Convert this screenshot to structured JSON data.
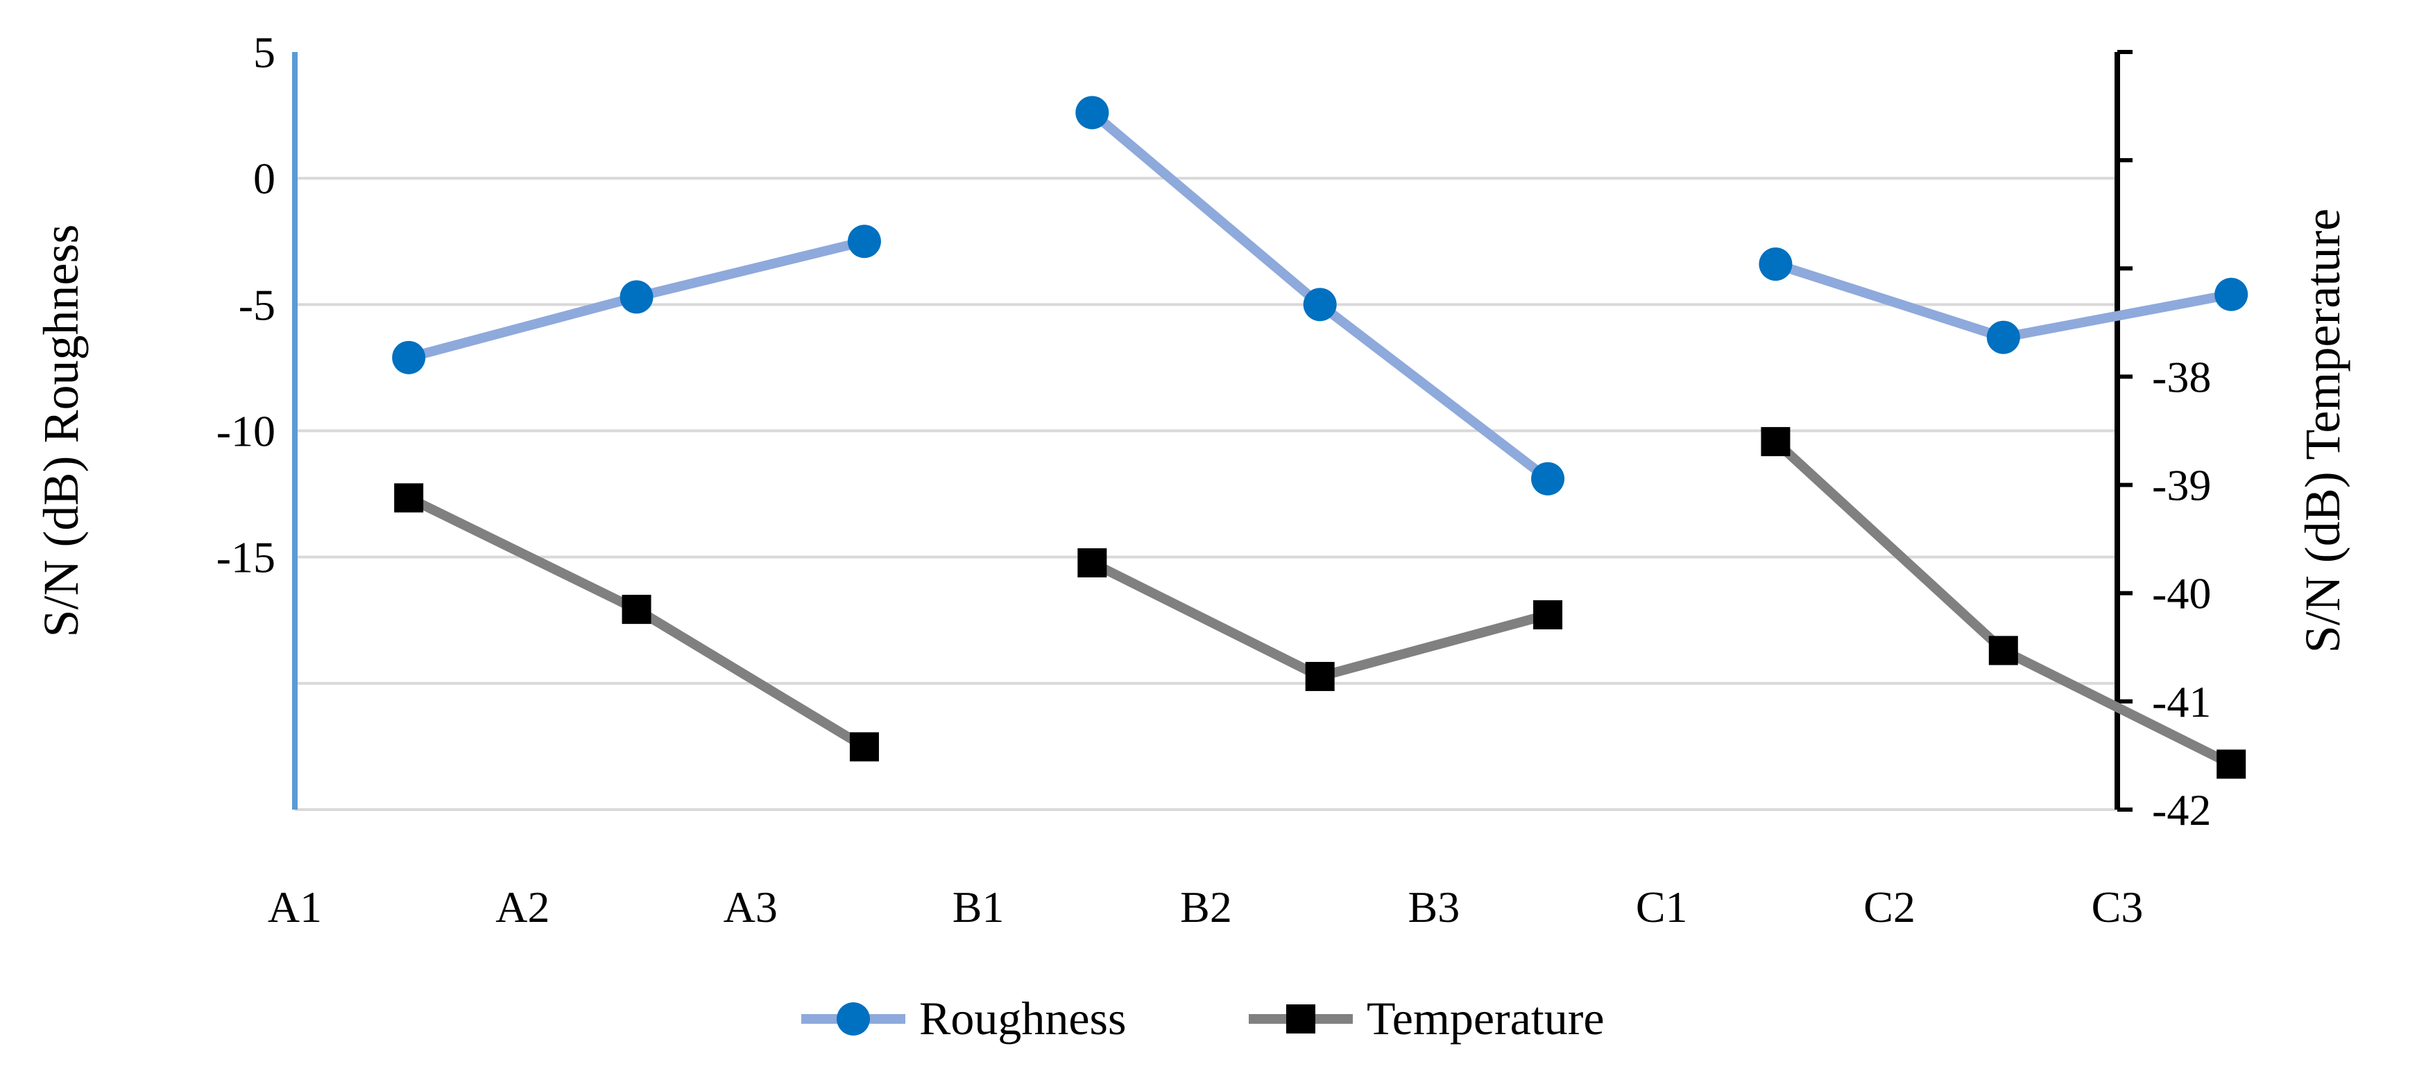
{
  "chart_data": {
    "type": "line",
    "title": "",
    "xlabel": "",
    "categories": [
      "A1",
      "A2",
      "A3",
      "B1",
      "B2",
      "B3",
      "C1",
      "C2",
      "C3"
    ],
    "y_left": {
      "label": "S/N (dB) Roughness",
      "ylim": [
        -25,
        5
      ],
      "ticks": [
        5,
        0,
        -5,
        -10,
        -15
      ],
      "tick_labels": [
        "5",
        "0",
        "-5",
        "-10",
        "-15"
      ]
    },
    "y_right": {
      "label": "S/N (dB) Temperature",
      "ylim": [
        -42,
        -35
      ],
      "ticks": [
        -38,
        -39,
        -40,
        -41,
        -42
      ],
      "tick_labels": [
        "-38",
        "-39",
        "-40",
        "-41",
        "-42"
      ]
    },
    "grid": true,
    "legend_position": "bottom-center",
    "series": [
      {
        "name": "Roughness",
        "axis": "left",
        "color": "#8EA9DB",
        "marker_color": "#0070C0",
        "marker": "circle",
        "groups": [
          {
            "x": [
              0.5,
              1.5,
              2.5
            ],
            "values": [
              -7.1,
              -4.7,
              -2.5
            ]
          },
          {
            "x": [
              3.5,
              4.5,
              5.5
            ],
            "values": [
              2.6,
              -5.0,
              -11.9
            ]
          },
          {
            "x": [
              6.5,
              7.5,
              8.5
            ],
            "values": [
              -3.4,
              -6.3,
              -4.6
            ]
          }
        ]
      },
      {
        "name": "Temperature",
        "axis": "right",
        "color": "#808080",
        "marker_color": "#000000",
        "marker": "square",
        "groups": [
          {
            "x": [
              0.5,
              1.5,
              2.5
            ],
            "values": [
              -39.12,
              -40.15,
              -41.42
            ]
          },
          {
            "x": [
              3.5,
              4.5,
              5.5
            ],
            "values": [
              -39.72,
              -40.77,
              -40.2
            ]
          },
          {
            "x": [
              6.5,
              7.5,
              8.5
            ],
            "values": [
              -38.6,
              -40.53,
              -41.58
            ]
          }
        ]
      }
    ]
  }
}
